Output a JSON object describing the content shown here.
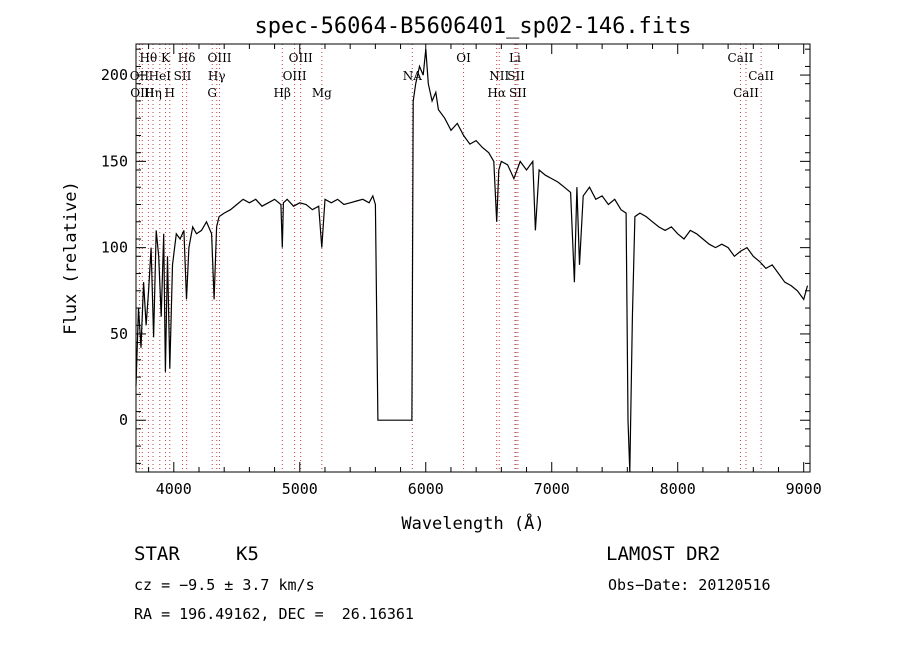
{
  "chart_data": {
    "type": "line",
    "title": "spec-56064-B5606401_sp02-146.fits",
    "xlabel": "Wavelength (Å)",
    "ylabel": "Flux (relative)",
    "xlim": [
      3700,
      9050
    ],
    "ylim": [
      -30,
      218
    ],
    "xticks": [
      4000,
      5000,
      6000,
      7000,
      8000,
      9000
    ],
    "yticks": [
      0,
      50,
      100,
      150,
      200
    ],
    "grid": false,
    "series": [
      {
        "color": "#000000",
        "x": [
          3700,
          3720,
          3740,
          3760,
          3780,
          3800,
          3820,
          3840,
          3860,
          3880,
          3900,
          3920,
          3933,
          3950,
          3968,
          3990,
          4020,
          4050,
          4080,
          4101,
          4120,
          4150,
          4180,
          4220,
          4260,
          4300,
          4320,
          4340,
          4360,
          4400,
          4450,
          4500,
          4550,
          4600,
          4650,
          4700,
          4750,
          4800,
          4850,
          4861,
          4870,
          4900,
          4950,
          5000,
          5050,
          5100,
          5150,
          5175,
          5200,
          5250,
          5300,
          5350,
          5400,
          5450,
          5500,
          5550,
          5580,
          5600,
          5620,
          5640,
          5890,
          5900,
          5920,
          5950,
          5980,
          6000,
          6020,
          6050,
          6080,
          6100,
          6150,
          6200,
          6250,
          6300,
          6350,
          6400,
          6450,
          6500,
          6540,
          6563,
          6580,
          6600,
          6650,
          6700,
          6750,
          6800,
          6850,
          6870,
          6900,
          6950,
          7000,
          7050,
          7100,
          7150,
          7180,
          7200,
          7220,
          7250,
          7300,
          7350,
          7400,
          7450,
          7500,
          7550,
          7590,
          7605,
          7620,
          7640,
          7660,
          7700,
          7750,
          7800,
          7850,
          7900,
          7950,
          8000,
          8050,
          8100,
          8150,
          8200,
          8250,
          8300,
          8350,
          8400,
          8450,
          8500,
          8550,
          8600,
          8650,
          8700,
          8750,
          8800,
          8850,
          8900,
          8950,
          9000,
          9030
        ],
        "y": [
          20,
          65,
          42,
          80,
          55,
          75,
          100,
          48,
          110,
          95,
          60,
          108,
          28,
          95,
          30,
          90,
          108,
          105,
          110,
          70,
          100,
          112,
          108,
          110,
          115,
          108,
          70,
          112,
          118,
          120,
          122,
          125,
          128,
          126,
          128,
          124,
          126,
          128,
          125,
          100,
          126,
          128,
          124,
          126,
          125,
          122,
          124,
          100,
          128,
          126,
          128,
          125,
          126,
          127,
          128,
          126,
          130,
          125,
          0,
          0,
          0,
          185,
          195,
          205,
          200,
          215,
          195,
          185,
          190,
          180,
          175,
          168,
          172,
          165,
          160,
          162,
          158,
          155,
          150,
          115,
          145,
          150,
          148,
          140,
          150,
          145,
          150,
          110,
          145,
          142,
          140,
          138,
          135,
          132,
          80,
          135,
          90,
          130,
          135,
          128,
          130,
          125,
          128,
          122,
          120,
          0,
          -30,
          60,
          118,
          120,
          118,
          115,
          112,
          110,
          112,
          108,
          105,
          110,
          108,
          105,
          102,
          100,
          102,
          100,
          95,
          98,
          100,
          95,
          92,
          88,
          90,
          85,
          80,
          78,
          75,
          70,
          78
        ]
      }
    ],
    "lines": [
      {
        "label": "Hθ",
        "x": 3798,
        "row": 0
      },
      {
        "label": "OII",
        "x": 3727,
        "row": 1
      },
      {
        "label": "OIII",
        "x": 3750,
        "row": 2
      },
      {
        "label": "Hη",
        "x": 3835,
        "row": 2
      },
      {
        "label": "HeI",
        "x": 3889,
        "row": 1
      },
      {
        "label": "K",
        "x": 3934,
        "row": 0
      },
      {
        "label": "H",
        "x": 3968,
        "row": 2
      },
      {
        "label": "SII",
        "x": 4069,
        "row": 1
      },
      {
        "label": "Hδ",
        "x": 4102,
        "row": 0
      },
      {
        "label": "OIII",
        "x": 4363,
        "row": 0
      },
      {
        "label": "Hγ",
        "x": 4341,
        "row": 1
      },
      {
        "label": "G",
        "x": 4305,
        "row": 2
      },
      {
        "label": "Hβ",
        "x": 4861,
        "row": 2
      },
      {
        "label": "OIII",
        "x": 5007,
        "row": 0
      },
      {
        "label": "OIII",
        "x": 4959,
        "row": 1
      },
      {
        "label": "Mg",
        "x": 5175,
        "row": 2
      },
      {
        "label": "NA",
        "x": 5893,
        "row": 1
      },
      {
        "label": "OI",
        "x": 6300,
        "row": 0
      },
      {
        "label": "NII",
        "x": 6583,
        "row": 1
      },
      {
        "label": "Hα",
        "x": 6563,
        "row": 2
      },
      {
        "label": "Li",
        "x": 6708,
        "row": 0
      },
      {
        "label": "SII",
        "x": 6717,
        "row": 1
      },
      {
        "label": "SII",
        "x": 6731,
        "row": 2
      },
      {
        "label": "CaII",
        "x": 8498,
        "row": 0
      },
      {
        "label": "CaII",
        "x": 8662,
        "row": 1
      },
      {
        "label": "CaII",
        "x": 8542,
        "row": 2
      }
    ]
  },
  "info": {
    "class": "STAR",
    "subclass": "K5",
    "survey": "LAMOST DR2",
    "cz": "cz = −9.5 ± 3.7 km/s",
    "obs_date": "Obs−Date: 20120516",
    "coords": "RA = 196.49162, DEC =  26.16361"
  }
}
